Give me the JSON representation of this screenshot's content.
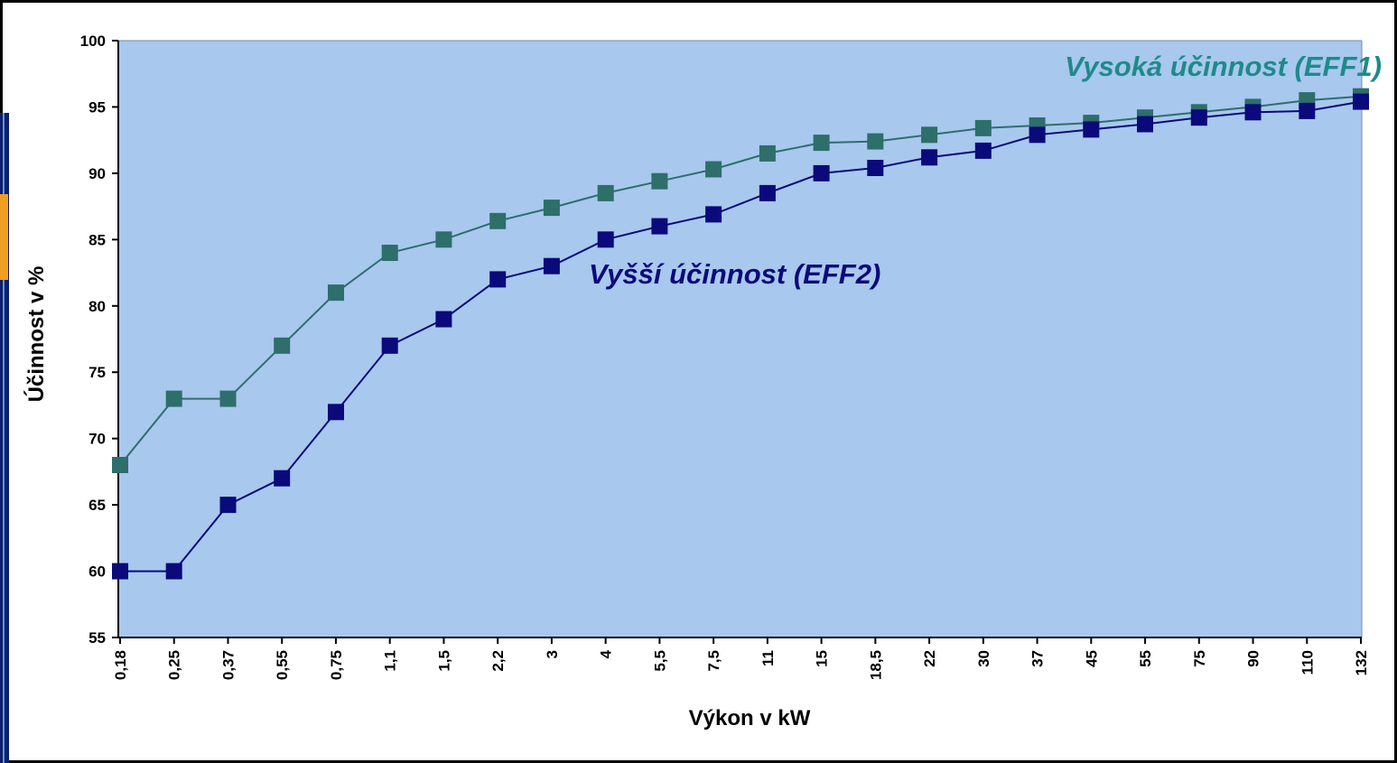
{
  "colors": {
    "plot_bg": "#a8c8ee",
    "eff1": "#2e6e6b",
    "eff1_label": "#1f8a8a",
    "eff2": "#0a0a7a",
    "frame": "#000000",
    "left_strip": "#0b1f6b",
    "accent": "#f0a020"
  },
  "chart_data": {
    "type": "line",
    "xlabel": "Výkon v  kW",
    "ylabel": "Účinnost v %",
    "ylim": [
      55,
      100
    ],
    "yticks": [
      "55",
      "60",
      "65",
      "70",
      "75",
      "80",
      "85",
      "90",
      "95",
      "100"
    ],
    "categories": [
      "0,18",
      "0,25",
      "0,37",
      "0,55",
      "0,75",
      "1,1",
      "1,5",
      "2,2",
      "3",
      "4",
      "5,5",
      "7,5",
      "11",
      "15",
      "18,5",
      "22",
      "30",
      "37",
      "45",
      "55",
      "75",
      "90",
      "110",
      "132"
    ],
    "grid": false,
    "series": [
      {
        "name": "Vysoká účinnost (EFF1)",
        "values": [
          68,
          73,
          73,
          77,
          81,
          84,
          85,
          86.4,
          87.4,
          88.5,
          89.4,
          90.3,
          91.5,
          92.3,
          92.4,
          92.9,
          93.4,
          93.6,
          93.8,
          94.2,
          94.6,
          95.0,
          95.5,
          95.8
        ]
      },
      {
        "name": "Vyšší účinnost (EFF2)",
        "values": [
          60,
          60,
          65,
          67,
          72,
          77,
          79,
          82,
          83,
          85,
          86,
          86.9,
          88.5,
          90,
          90.4,
          91.2,
          91.7,
          92.9,
          93.3,
          93.7,
          94.2,
          94.6,
          94.7,
          95.4
        ]
      }
    ]
  }
}
